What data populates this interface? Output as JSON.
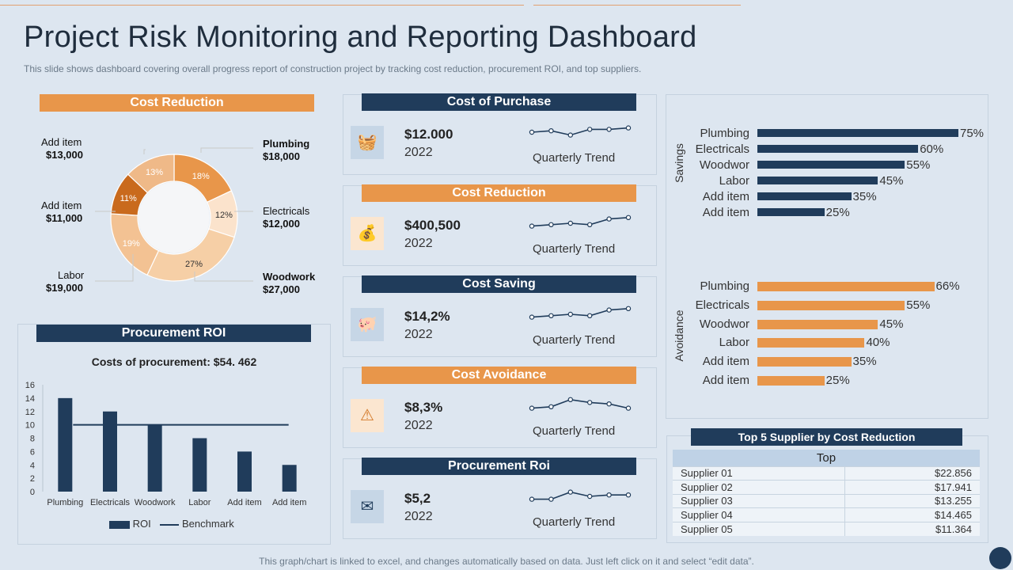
{
  "page": {
    "title": "Project Risk Monitoring and Reporting Dashboard",
    "subtitle": "This slide shows dashboard covering overall progress report of construction project by tracking cost reduction, procurement ROI, and top suppliers.",
    "footer": "This graph/chart is linked to excel,  and changes automatically based on data. Just left click on it and select “edit data”."
  },
  "cost_reduction_donut": {
    "header": "Cost Reduction",
    "callouts": [
      {
        "name": "Add item",
        "value": "$13,000"
      },
      {
        "name": "Plumbing",
        "value": "$18,000"
      },
      {
        "name": "Add item",
        "value": "$11,000"
      },
      {
        "name": "Electricals",
        "value": "$12,000"
      },
      {
        "name": "Labor",
        "value": "$19,000"
      },
      {
        "name": "Woodwork",
        "value": "$27,000"
      }
    ],
    "slice_labels": [
      "18%",
      "12%",
      "27%",
      "19%",
      "11%",
      "13%"
    ]
  },
  "procurement_roi": {
    "header": "Procurement ROI",
    "subtitle": "Costs of procurement: $54. 462",
    "legend_roi": "ROI",
    "legend_benchmark": "Benchmark"
  },
  "metrics": [
    {
      "header": "Cost of Purchase",
      "value": "$12.000",
      "year": "2022",
      "trend_label": "Quarterly Trend",
      "icon": "shopping-basket-icon"
    },
    {
      "header": "Cost Reduction",
      "value": "$400,500",
      "year": "2022",
      "trend_label": "Quarterly Trend",
      "icon": "money-bag-icon"
    },
    {
      "header": "Cost Saving",
      "value": "$14,2%",
      "year": "2022",
      "trend_label": "Quarterly Trend",
      "icon": "piggy-bank-icon"
    },
    {
      "header": "Cost Avoidance",
      "value": "$8,3%",
      "year": "2022",
      "trend_label": "Quarterly Trend",
      "icon": "warning-icon"
    },
    {
      "header": "Procurement Roi",
      "value": "$5,2",
      "year": "2022",
      "trend_label": "Quarterly Trend",
      "icon": "envelope-icon"
    }
  ],
  "savings_chart": {
    "axis_label": "Savings"
  },
  "avoidance_chart": {
    "axis_label": "Avoidance"
  },
  "suppliers": {
    "header": "Top 5 Supplier by Cost Reduction",
    "column": "Top",
    "rows": [
      {
        "name": "Supplier 01",
        "value": "$22.856"
      },
      {
        "name": "Supplier 02",
        "value": "$17.941"
      },
      {
        "name": "Supplier 03",
        "value": "$13.255"
      },
      {
        "name": "Supplier 04",
        "value": "$14.465"
      },
      {
        "name": "Supplier 05",
        "value": "$11.364"
      }
    ]
  },
  "chart_data": [
    {
      "type": "pie",
      "title": "Cost Reduction",
      "categories": [
        "Plumbing",
        "Electricals",
        "Woodwork",
        "Labor",
        "Add item",
        "Add item"
      ],
      "values": [
        18,
        12,
        27,
        19,
        11,
        13
      ],
      "colors": [
        "#e8964a",
        "#fbe3cc",
        "#f6cfa6",
        "#f3c293",
        "#c96a1d",
        "#efb988"
      ]
    },
    {
      "type": "bar",
      "title": "Costs of procurement: $54. 462",
      "categories": [
        "Plumbing",
        "Electricals",
        "Woodwork",
        "Labor",
        "Add item",
        "Add item"
      ],
      "series": [
        {
          "name": "ROI",
          "values": [
            14,
            12,
            10,
            8,
            6,
            4
          ]
        },
        {
          "name": "Benchmark",
          "values": [
            10,
            10,
            10,
            10,
            10,
            10
          ]
        }
      ],
      "ylim": [
        0,
        16
      ],
      "yticks": [
        "0",
        "2",
        "4",
        "6",
        "8",
        "10",
        "12",
        "14",
        "16"
      ]
    },
    {
      "type": "line",
      "title": "Quarterly Trend (sparklines)",
      "series": [
        {
          "name": "Cost of Purchase",
          "values": [
            5,
            6,
            3,
            7,
            7,
            8
          ]
        },
        {
          "name": "Cost Reduction",
          "values": [
            3,
            4,
            5,
            4,
            8,
            9
          ]
        },
        {
          "name": "Cost Saving",
          "values": [
            3,
            4,
            5,
            4,
            8,
            9
          ]
        },
        {
          "name": "Cost Avoidance",
          "values": [
            3,
            4,
            9,
            7,
            6,
            3
          ]
        },
        {
          "name": "Procurement Roi",
          "values": [
            3,
            3,
            8,
            5,
            6,
            6
          ]
        }
      ]
    },
    {
      "type": "bar",
      "title": "Savings",
      "categories": [
        "Plumbing",
        "Electricals",
        "Woodwor",
        "Labor",
        "Add item",
        "Add item"
      ],
      "values": [
        75,
        60,
        55,
        45,
        35,
        25
      ],
      "value_labels": [
        "75%",
        "60%",
        "55%",
        "45%",
        "35%",
        "25%"
      ],
      "orientation": "horizontal",
      "color": "#203c5b"
    },
    {
      "type": "bar",
      "title": "Avoidance",
      "categories": [
        "Plumbing",
        "Electricals",
        "Woodwor",
        "Labor",
        "Add item",
        "Add item"
      ],
      "values": [
        66,
        55,
        45,
        40,
        35,
        25
      ],
      "value_labels": [
        "66%",
        "55%",
        "45%",
        "40%",
        "35%",
        "25%"
      ],
      "orientation": "horizontal",
      "color": "#e8964a"
    }
  ]
}
